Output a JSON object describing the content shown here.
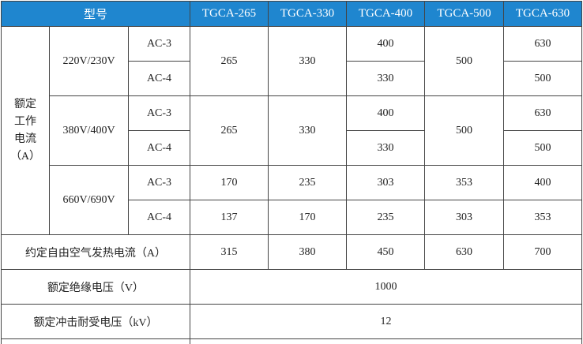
{
  "header": {
    "model_label": "型号",
    "models": [
      "TGCA-265",
      "TGCA-330",
      "TGCA-400",
      "TGCA-500",
      "TGCA-630"
    ]
  },
  "rated_current": {
    "label_lines": [
      "额定",
      "工作",
      "电流",
      "（A）"
    ],
    "groups": [
      {
        "voltage": "220V/230V",
        "ac3": "AC-3",
        "ac4": "AC-4",
        "c265": "265",
        "c330": "330",
        "c400_ac3": "400",
        "c400_ac4": "330",
        "c500": "500",
        "c630_ac3": "630",
        "c630_ac4": "500"
      },
      {
        "voltage": "380V/400V",
        "ac3": "AC-3",
        "ac4": "AC-4",
        "c265": "265",
        "c330": "330",
        "c400_ac3": "400",
        "c400_ac4": "330",
        "c500": "500",
        "c630_ac3": "630",
        "c630_ac4": "500"
      },
      {
        "voltage": "660V/690V",
        "ac3": "AC-3",
        "ac4": "AC-4",
        "ac3_values": [
          "170",
          "235",
          "303",
          "353",
          "400"
        ],
        "ac4_values": [
          "137",
          "170",
          "235",
          "303",
          "353"
        ]
      }
    ]
  },
  "thermal_current": {
    "label": "约定自由空气发热电流（A）",
    "values": [
      "315",
      "380",
      "450",
      "630",
      "700"
    ]
  },
  "insulation_voltage": {
    "label": "额定绝缘电压（V）",
    "value": "1000"
  },
  "impulse_voltage": {
    "label": "额定冲击耐受电压（kV）",
    "value": "12"
  }
}
